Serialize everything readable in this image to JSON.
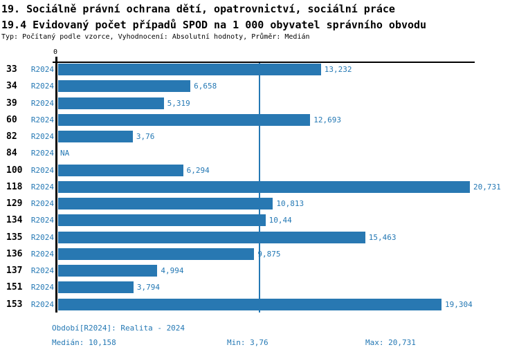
{
  "page": {
    "title1": "19. Sociálně právní ochrana dětí, opatrovnictví, sociální práce",
    "title2": "19.4 Evidovaný počet případů SPOD na 1 000 obyvatel správního obvodu",
    "subtitle": "Typ: Počítaný podle vzorce, Vyhodnocení: Absolutní hodnoty, Průměr: Medián"
  },
  "colors": {
    "bar": "#2878b2",
    "accent_text": "#2478b4",
    "axis": "#000000"
  },
  "chart_data": {
    "type": "bar",
    "orientation": "horizontal",
    "title": "19.4 Evidovaný počet případů SPOD na 1 000 obyvatel správního obvodu",
    "x_axis": {
      "tick_label": "0",
      "min": 0,
      "max": 20.731,
      "grid": false
    },
    "median_line_value": 10.158,
    "period_label": "R2024",
    "categories": [
      "33",
      "34",
      "39",
      "60",
      "82",
      "84",
      "100",
      "118",
      "129",
      "134",
      "135",
      "136",
      "137",
      "151",
      "153"
    ],
    "rows": [
      {
        "code": "33",
        "period": "R2024",
        "value": 13.232,
        "label": "13,232"
      },
      {
        "code": "34",
        "period": "R2024",
        "value": 6.658,
        "label": "6,658"
      },
      {
        "code": "39",
        "period": "R2024",
        "value": 5.319,
        "label": "5,319"
      },
      {
        "code": "60",
        "period": "R2024",
        "value": 12.693,
        "label": "12,693"
      },
      {
        "code": "82",
        "period": "R2024",
        "value": 3.76,
        "label": "3,76"
      },
      {
        "code": "84",
        "period": "R2024",
        "value": null,
        "label": "NA"
      },
      {
        "code": "100",
        "period": "R2024",
        "value": 6.294,
        "label": "6,294"
      },
      {
        "code": "118",
        "period": "R2024",
        "value": 20.731,
        "label": "20,731"
      },
      {
        "code": "129",
        "period": "R2024",
        "value": 10.813,
        "label": "10,813"
      },
      {
        "code": "134",
        "period": "R2024",
        "value": 10.44,
        "label": "10,44"
      },
      {
        "code": "135",
        "period": "R2024",
        "value": 15.463,
        "label": "15,463"
      },
      {
        "code": "136",
        "period": "R2024",
        "value": 9.875,
        "label": "9,875"
      },
      {
        "code": "137",
        "period": "R2024",
        "value": 4.994,
        "label": "4,994"
      },
      {
        "code": "151",
        "period": "R2024",
        "value": 3.794,
        "label": "3,794"
      },
      {
        "code": "153",
        "period": "R2024",
        "value": 19.304,
        "label": "19,304"
      }
    ],
    "footer": {
      "period_line": "Období[R2024]: Realita - 2024",
      "median": "Medián: 10,158",
      "min": "Min: 3,76",
      "max": "Max: 20,731"
    },
    "stats": {
      "median": 10.158,
      "min": 3.76,
      "max": 20.731
    }
  }
}
